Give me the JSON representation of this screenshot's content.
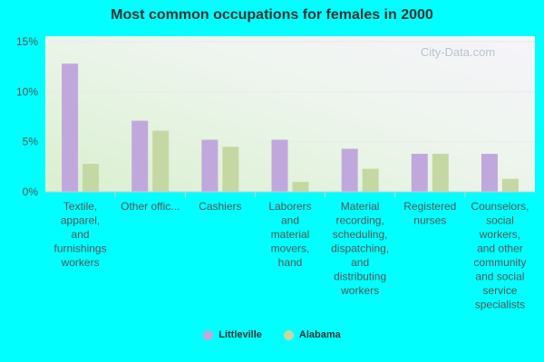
{
  "chart_data": {
    "type": "bar",
    "title": "Most common occupations for females in 2000",
    "categories": [
      [
        "Textile,",
        "apparel,",
        "and",
        "furnishings",
        "workers"
      ],
      [
        "Other offic..."
      ],
      [
        "Cashiers"
      ],
      [
        "Laborers",
        "and",
        "material",
        "movers,",
        "hand"
      ],
      [
        "Material",
        "recording,",
        "scheduling,",
        "dispatching,",
        "and",
        "distributing",
        "workers"
      ],
      [
        "Registered",
        "nurses"
      ],
      [
        "Counselors,",
        "social",
        "workers,",
        "and other",
        "community",
        "and social",
        "service",
        "specialists"
      ]
    ],
    "series": [
      {
        "name": "Littleville",
        "color": "#c0a8dc",
        "values": [
          12.8,
          7.1,
          5.2,
          5.2,
          4.3,
          3.8,
          3.8
        ]
      },
      {
        "name": "Alabama",
        "color": "#c5d8a4",
        "values": [
          2.8,
          6.1,
          4.5,
          1.0,
          2.3,
          3.8,
          1.3
        ]
      }
    ],
    "ylim": [
      0,
      15
    ],
    "yticks": [
      0,
      5,
      10,
      15
    ],
    "ytick_labels": [
      "0%",
      "5%",
      "10%",
      "15%"
    ],
    "grid": true,
    "legend_position": "bottom-center",
    "watermark": "City-Data.com"
  }
}
